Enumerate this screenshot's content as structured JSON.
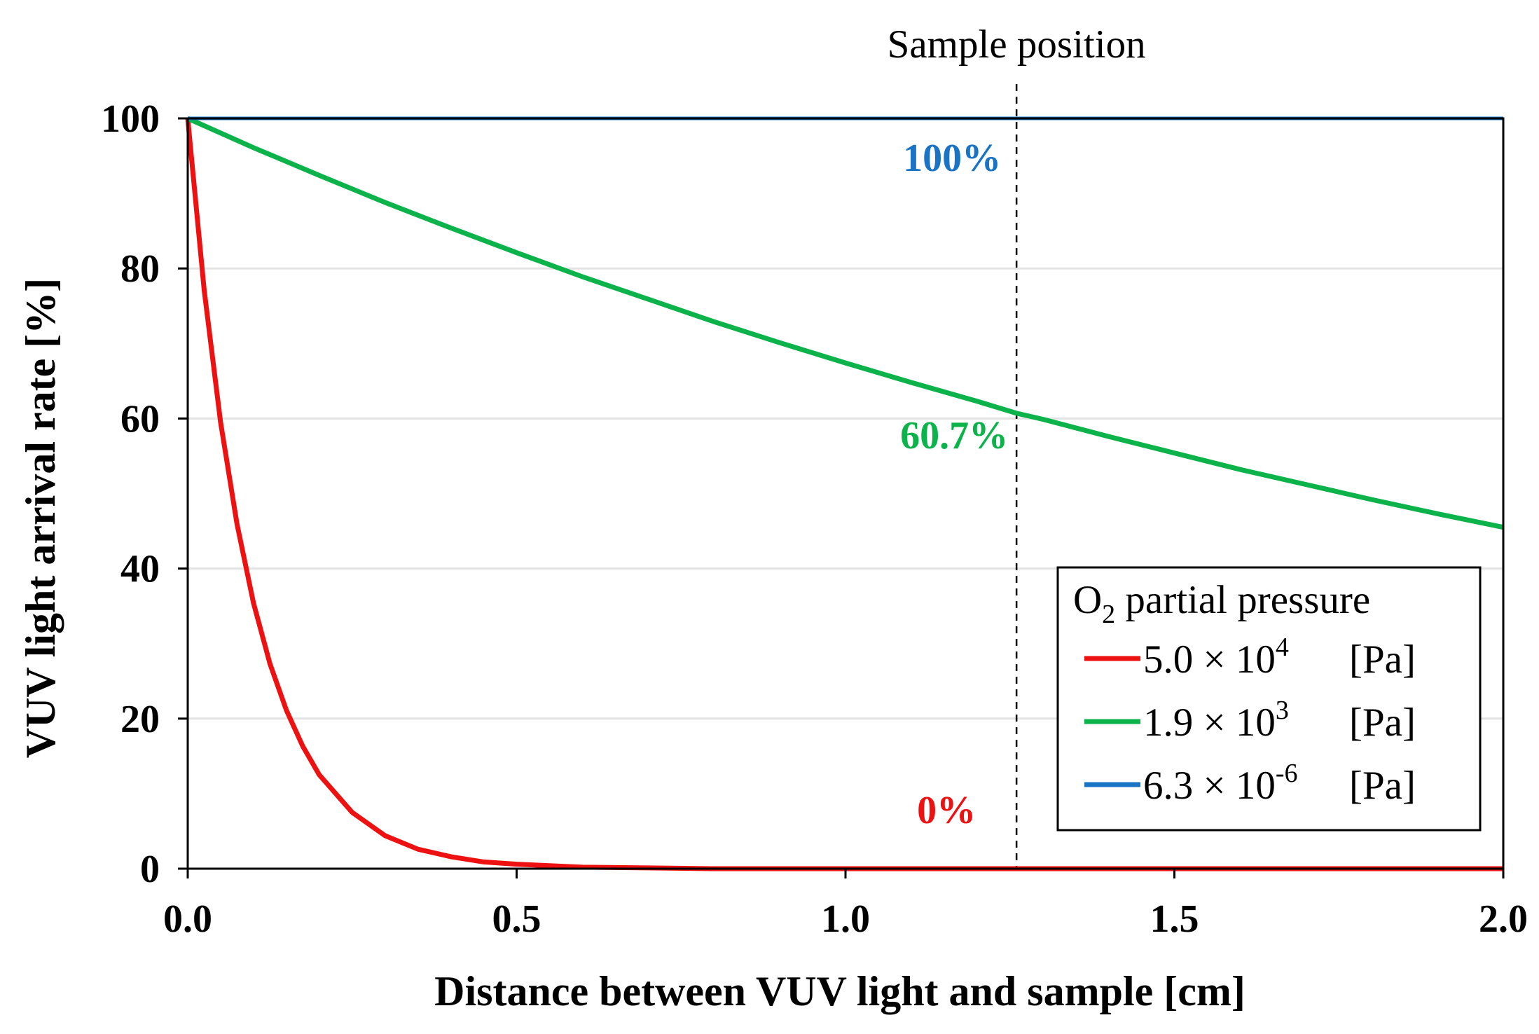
{
  "chart_data": {
    "type": "line",
    "title": "",
    "xlabel": "Distance between VUV light and sample [cm]",
    "ylabel": "VUV light arrival rate [%]",
    "xlim": [
      0,
      2.0
    ],
    "ylim": [
      0,
      100
    ],
    "x_ticks": [
      "0.0",
      "0.5",
      "1.0",
      "1.5",
      "2.0"
    ],
    "y_ticks": [
      "0",
      "20",
      "40",
      "60",
      "80",
      "100"
    ],
    "grid": "horizontal",
    "sample_position": {
      "label": "Sample position",
      "x": 1.26
    },
    "legend": {
      "title_prefix": "O",
      "title_sub": "2",
      "title_suffix": " partial pressure",
      "placement": "bottom-right"
    },
    "series": [
      {
        "name": "5.0 × 10^4 [Pa]",
        "coef": "5.0 × 10",
        "exp": "4",
        "unit": "[Pa]",
        "color": "#ee1111",
        "x": [
          0,
          0.025,
          0.05,
          0.075,
          0.1,
          0.125,
          0.15,
          0.175,
          0.2,
          0.25,
          0.3,
          0.35,
          0.4,
          0.45,
          0.5,
          0.6,
          0.7,
          0.8,
          1.0,
          1.26,
          1.5,
          2.0
        ],
        "values": [
          100,
          77.1,
          59.5,
          45.9,
          35.4,
          27.3,
          21.1,
          16.3,
          12.5,
          7.5,
          4.4,
          2.6,
          1.6,
          0.9,
          0.6,
          0.2,
          0.1,
          0,
          0,
          0,
          0,
          0
        ]
      },
      {
        "name": "1.9 × 10^3 [Pa]",
        "coef": "1.9 × 10",
        "exp": "3",
        "unit": "[Pa]",
        "color": "#0cb24a",
        "x": [
          0,
          0.1,
          0.2,
          0.3,
          0.4,
          0.5,
          0.6,
          0.7,
          0.8,
          0.9,
          1.0,
          1.1,
          1.2,
          1.26,
          1.3,
          1.4,
          1.5,
          1.6,
          1.7,
          1.8,
          1.9,
          2.0
        ],
        "values": [
          100,
          96.1,
          92.4,
          88.8,
          85.4,
          82.1,
          78.9,
          75.9,
          72.9,
          70.1,
          67.4,
          64.8,
          62.3,
          60.7,
          59.9,
          57.6,
          55.4,
          53.2,
          51.2,
          49.2,
          47.3,
          45.5
        ]
      },
      {
        "name": "6.3 × 10^-6 [Pa]",
        "coef": "6.3 × 10",
        "exp": "-6",
        "unit": "[Pa]",
        "color": "#1a73c4",
        "x": [
          0,
          2.0
        ],
        "values": [
          100,
          100
        ]
      }
    ],
    "annotations": [
      {
        "text": "100%",
        "x": 1.26,
        "y": 100,
        "color": "#1a73c4"
      },
      {
        "text": "60.7%",
        "x": 1.26,
        "y": 60.7,
        "color": "#0cb24a"
      },
      {
        "text": "0%",
        "x": 1.26,
        "y": 0,
        "color": "#ee1111"
      }
    ]
  }
}
